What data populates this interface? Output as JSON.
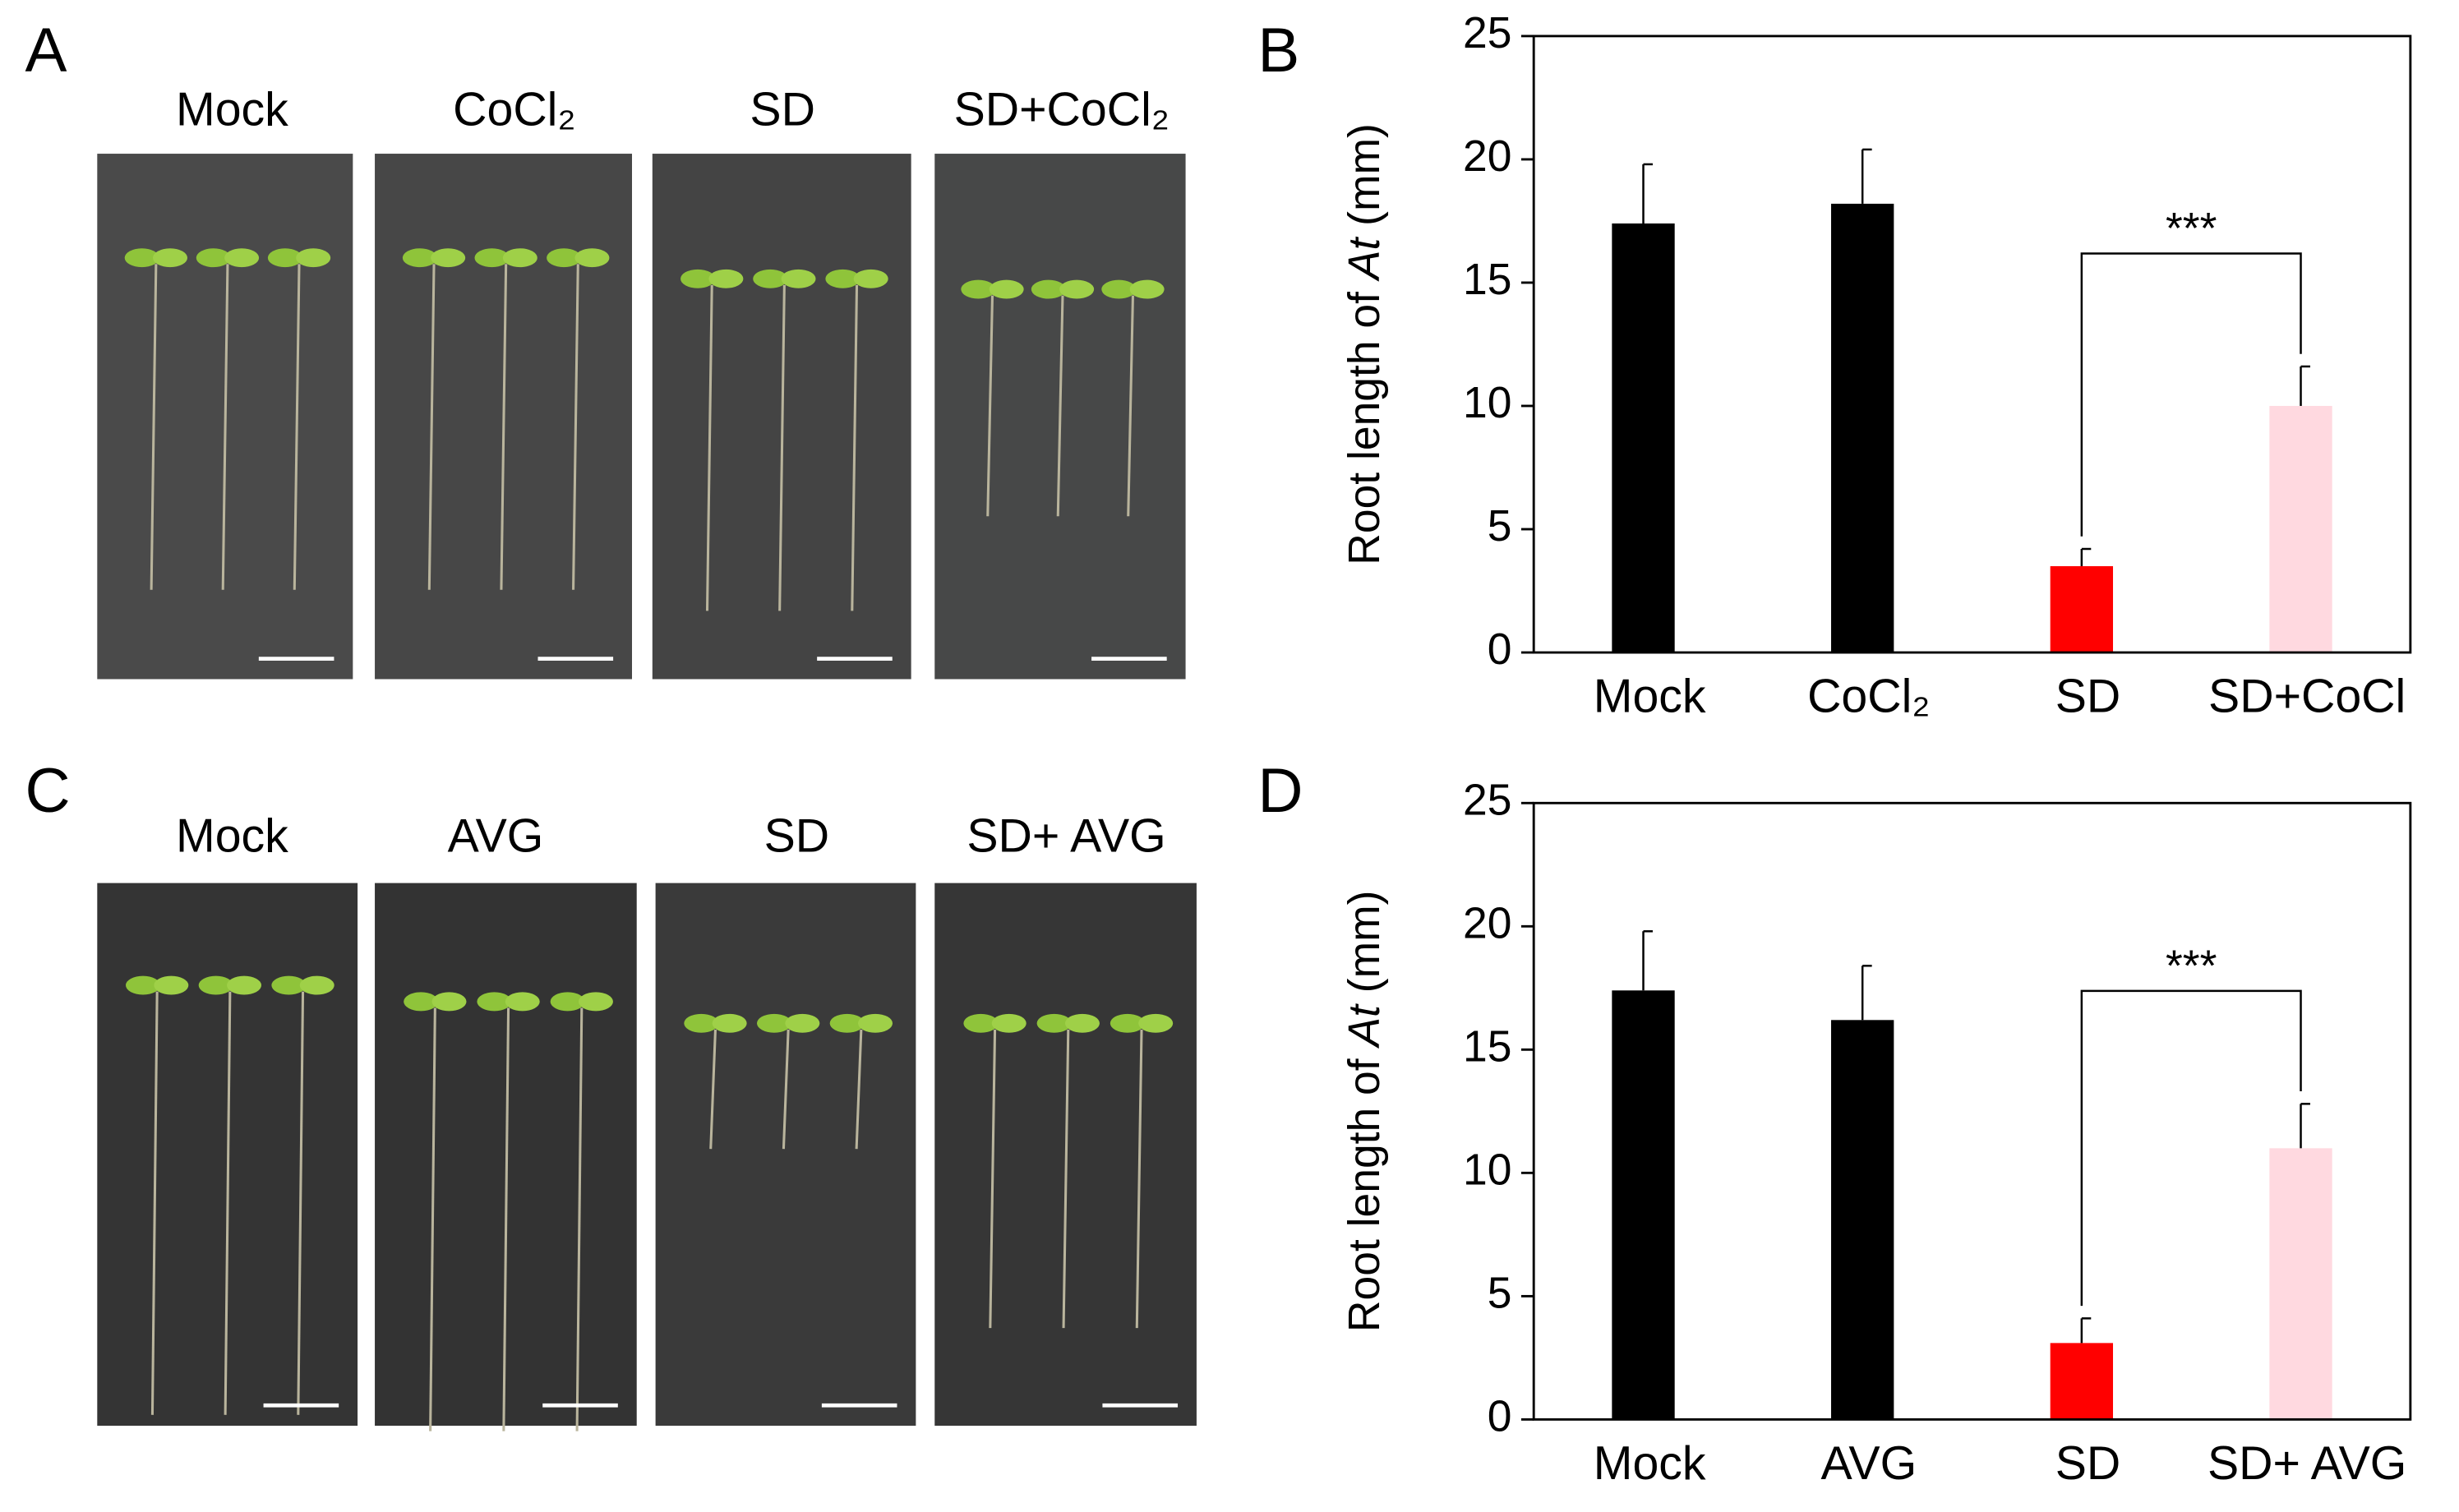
{
  "panel_labels": [
    "A",
    "B",
    "C",
    "D"
  ],
  "photo_rows": [
    {
      "labels": [
        "Mock",
        "CoCl₂",
        "SD",
        "SD+CoCl₂"
      ]
    },
    {
      "labels": [
        "Mock",
        "AVG",
        "SD",
        "SD+ AVG"
      ]
    }
  ],
  "chart_data": [
    {
      "type": "bar",
      "ylabel": [
        "Root length of ",
        "At",
        " (mm)"
      ],
      "categories": [
        "Mock",
        "CoCl₂",
        "SD",
        "SD+CoCl"
      ],
      "values": [
        17.4,
        18.2,
        3.5,
        10.0
      ],
      "errors": [
        2.4,
        2.2,
        0.7,
        1.6
      ],
      "colors": [
        "#000000",
        "#000000",
        "#ff0000",
        "#ffd9e0"
      ],
      "ylim": [
        0,
        25
      ],
      "yticks": [
        0,
        5,
        10,
        15,
        20,
        25
      ],
      "annotation": "***"
    },
    {
      "type": "bar",
      "ylabel": [
        "Root length of ",
        "At",
        " (mm)"
      ],
      "categories": [
        "Mock",
        "AVG",
        "SD",
        "SD+ AVG"
      ],
      "values": [
        17.4,
        16.2,
        3.1,
        11.0
      ],
      "errors": [
        2.4,
        2.2,
        1.0,
        1.8
      ],
      "colors": [
        "#000000",
        "#000000",
        "#ff0000",
        "#ffd9e0"
      ],
      "ylim": [
        0,
        25
      ],
      "yticks": [
        0,
        5,
        10,
        15,
        20,
        25
      ],
      "annotation": "***"
    }
  ]
}
